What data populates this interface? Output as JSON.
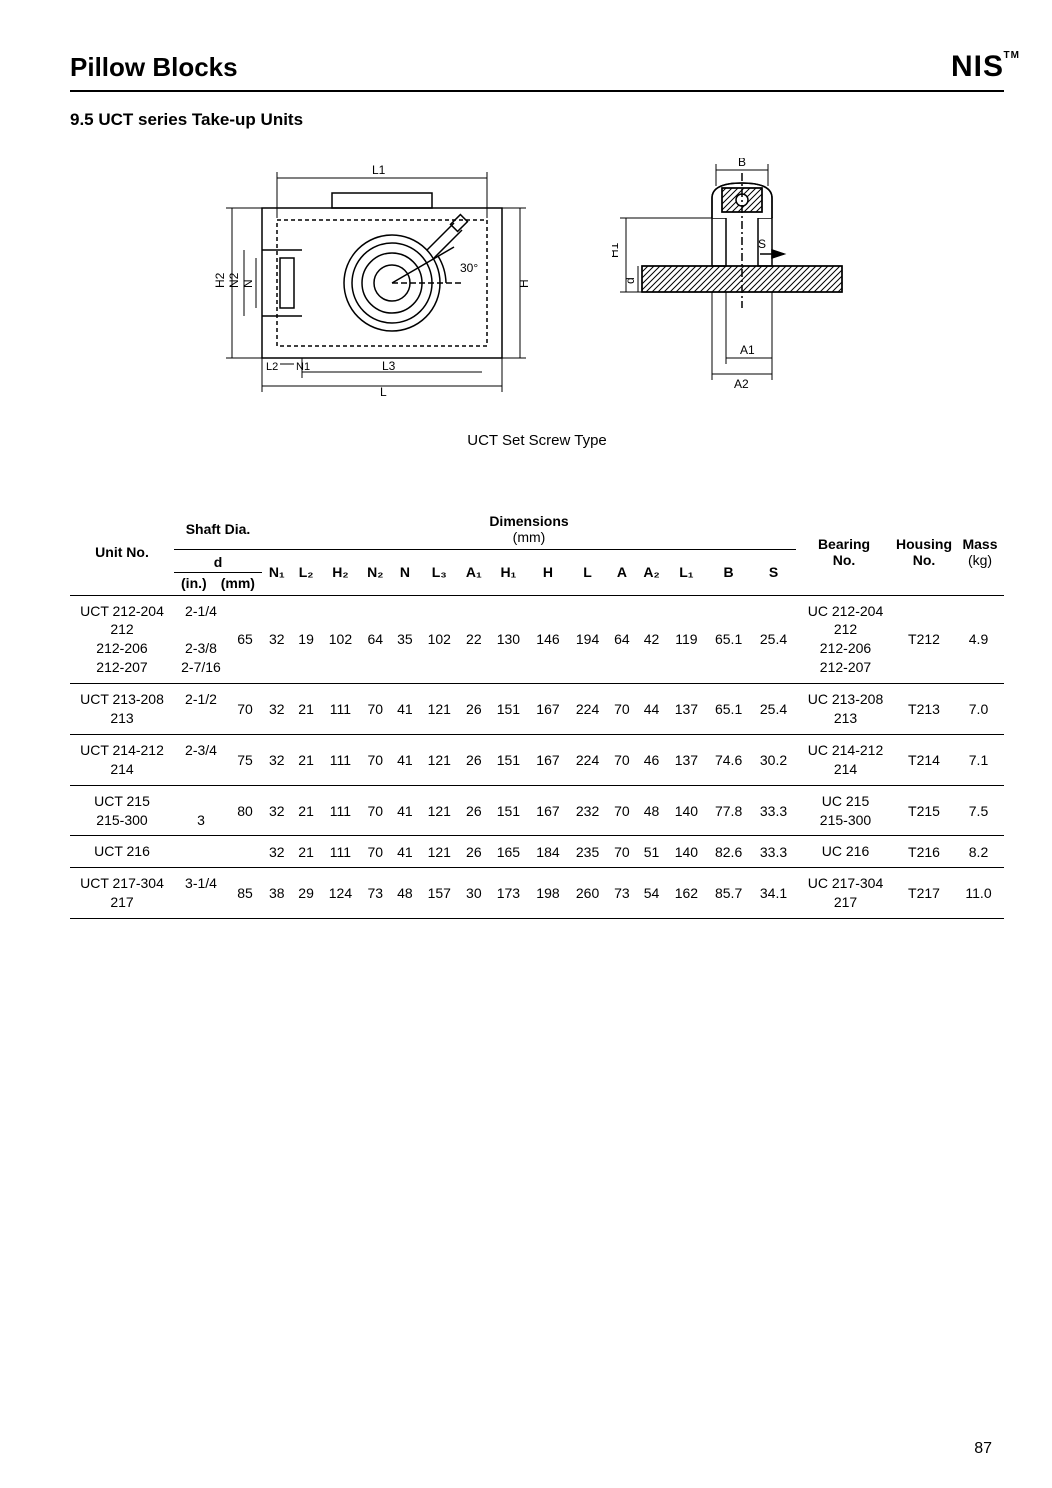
{
  "header": {
    "title": "Pillow Blocks",
    "brand": "NIS",
    "brand_tm": "TM",
    "subtitle": "9.5  UCT series Take-up Units",
    "diagram_caption": "UCT Set Screw Type"
  },
  "diagram_labels": {
    "left": {
      "L1": "L1",
      "H2": "H2",
      "N2": "N2",
      "N": "N",
      "H": "H",
      "angle": "30°",
      "L2": "L2",
      "N1": "N1",
      "L3": "L3",
      "L": "L"
    },
    "right": {
      "B": "B",
      "S": "S",
      "H1": "H1",
      "d": "d",
      "A1": "A1",
      "A2": "A2"
    }
  },
  "table": {
    "headers": {
      "unit_no": "Unit No.",
      "shaft_dia": "Shaft Dia.",
      "dimensions": "Dimensions",
      "dimensions_unit": "(mm)",
      "bearing_no": "Bearing",
      "bearing_no2": "No.",
      "housing_no": "Housing",
      "housing_no2": "No.",
      "mass": "Mass",
      "mass_unit": "(kg)",
      "d": "d",
      "d_in": "(in.)",
      "d_mm": "(mm)",
      "dims": [
        "N₁",
        "L₂",
        "H₂",
        "N₂",
        "N",
        "L₃",
        "A₁",
        "H₁",
        "H",
        "L",
        "A",
        "A₂",
        "L₁",
        "B",
        "S"
      ]
    },
    "rows": [
      {
        "unit_no": [
          "UCT 212-204",
          "212",
          "212-206",
          "212-207"
        ],
        "d_in": [
          "2-1/4",
          "",
          "2-3/8",
          "2-7/16"
        ],
        "d_mm": "65",
        "dims": [
          "32",
          "19",
          "102",
          "64",
          "35",
          "102",
          "22",
          "130",
          "146",
          "194",
          "64",
          "42",
          "119",
          "65.1",
          "25.4"
        ],
        "bearing": [
          "UC 212-204",
          "212",
          "212-206",
          "212-207"
        ],
        "housing": "T212",
        "mass": "4.9"
      },
      {
        "unit_no": [
          "UCT 213-208",
          "213"
        ],
        "d_in": [
          "2-1/2",
          ""
        ],
        "d_mm": "70",
        "dims": [
          "32",
          "21",
          "111",
          "70",
          "41",
          "121",
          "26",
          "151",
          "167",
          "224",
          "70",
          "44",
          "137",
          "65.1",
          "25.4"
        ],
        "bearing": [
          "UC 213-208",
          "213"
        ],
        "housing": "T213",
        "mass": "7.0"
      },
      {
        "unit_no": [
          "UCT 214-212",
          "214"
        ],
        "d_in": [
          "2-3/4",
          ""
        ],
        "d_mm": "75",
        "dims": [
          "32",
          "21",
          "111",
          "70",
          "41",
          "121",
          "26",
          "151",
          "167",
          "224",
          "70",
          "46",
          "137",
          "74.6",
          "30.2"
        ],
        "bearing": [
          "UC 214-212",
          "214"
        ],
        "housing": "T214",
        "mass": "7.1"
      },
      {
        "unit_no": [
          "UCT 215",
          "215-300"
        ],
        "d_in": [
          "",
          "3"
        ],
        "d_mm": "80",
        "dims": [
          "32",
          "21",
          "111",
          "70",
          "41",
          "121",
          "26",
          "151",
          "167",
          "232",
          "70",
          "48",
          "140",
          "77.8",
          "33.3"
        ],
        "bearing": [
          "UC 215",
          "215-300"
        ],
        "housing": "T215",
        "mass": "7.5"
      },
      {
        "unit_no": [
          "UCT 216"
        ],
        "d_in": [
          ""
        ],
        "d_mm": "",
        "dims": [
          "32",
          "21",
          "111",
          "70",
          "41",
          "121",
          "26",
          "165",
          "184",
          "235",
          "70",
          "51",
          "140",
          "82.6",
          "33.3"
        ],
        "bearing": [
          "UC 216"
        ],
        "housing": "T216",
        "mass": "8.2"
      },
      {
        "unit_no": [
          "UCT 217-304",
          "217"
        ],
        "d_in": [
          "3-1/4",
          ""
        ],
        "d_mm": "85",
        "dims": [
          "38",
          "29",
          "124",
          "73",
          "48",
          "157",
          "30",
          "173",
          "198",
          "260",
          "73",
          "54",
          "162",
          "85.7",
          "34.1"
        ],
        "bearing": [
          "UC 217-304",
          "217"
        ],
        "housing": "T217",
        "mass": "11.0"
      }
    ]
  },
  "page_number": "87",
  "colors": {
    "text": "#000000",
    "line": "#000000",
    "hatch": "#000000",
    "bg": "#ffffff"
  }
}
